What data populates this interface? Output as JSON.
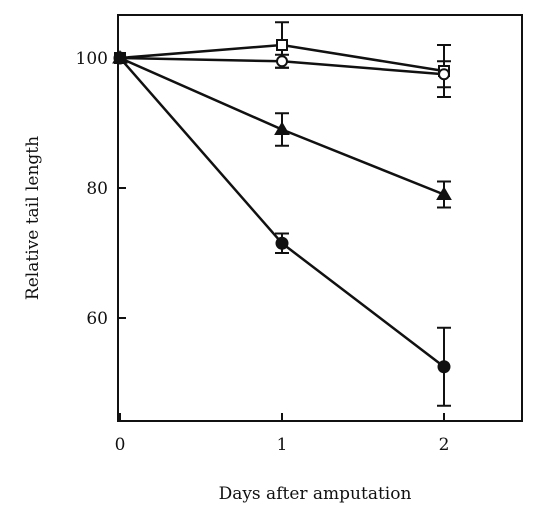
{
  "chart_data": {
    "type": "line",
    "title": "",
    "xlabel": "Days after amputation",
    "ylabel": "Relative tail length",
    "xlim": [
      0,
      2.5
    ],
    "ylim": [
      45,
      112
    ],
    "xticks": [
      0,
      1,
      2
    ],
    "xtick_labels": [
      "0",
      "1",
      "2"
    ],
    "yticks": [
      60,
      80,
      100
    ],
    "ytick_labels": [
      "60",
      "80",
      "100"
    ],
    "grid": false,
    "legend": "none",
    "series": [
      {
        "marker": "open-square",
        "x": [
          0,
          1,
          2
        ],
        "y": [
          100,
          102,
          98
        ],
        "err": [
          0,
          3.5,
          4
        ]
      },
      {
        "marker": "open-circle",
        "x": [
          0,
          1,
          2
        ],
        "y": [
          100,
          99.5,
          97.5
        ],
        "err": [
          0,
          1,
          2
        ]
      },
      {
        "marker": "filled-triangle",
        "x": [
          0,
          1,
          2
        ],
        "y": [
          100,
          89,
          79
        ],
        "err": [
          0,
          2.5,
          2
        ]
      },
      {
        "marker": "filled-circle",
        "x": [
          0,
          1,
          2
        ],
        "y": [
          100,
          71.5,
          52.5
        ],
        "err": [
          0,
          1.5,
          6
        ]
      }
    ]
  }
}
